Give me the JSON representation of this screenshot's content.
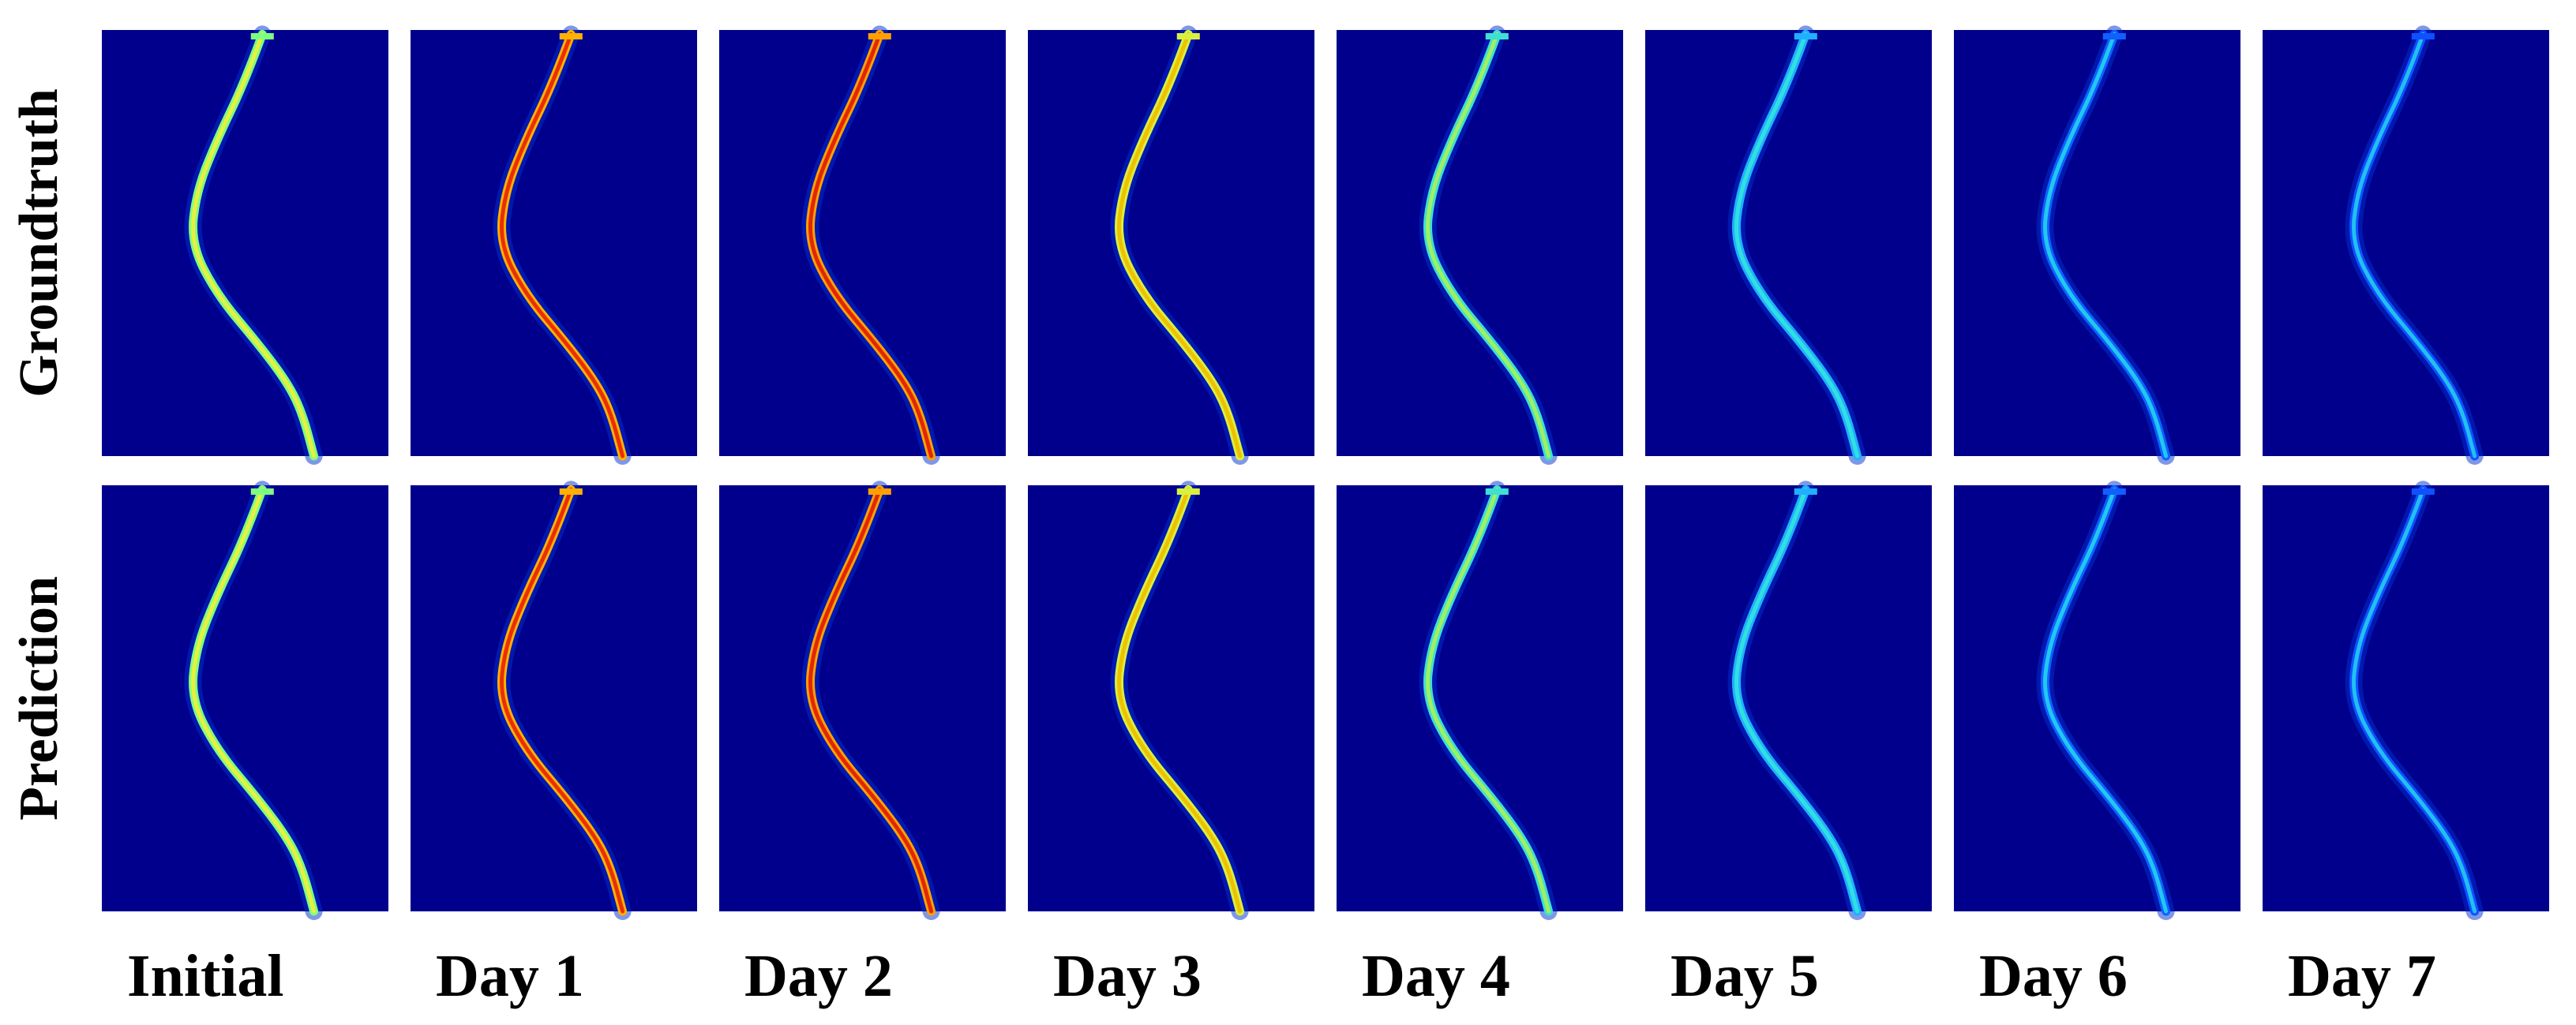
{
  "row_labels": [
    "Groundtruth",
    "Prediction"
  ],
  "column_labels": [
    "Initial",
    "Day 1",
    "Day 2",
    "Day 3",
    "Day 4",
    "Day 5",
    "Day 6",
    "Day 7"
  ]
}
